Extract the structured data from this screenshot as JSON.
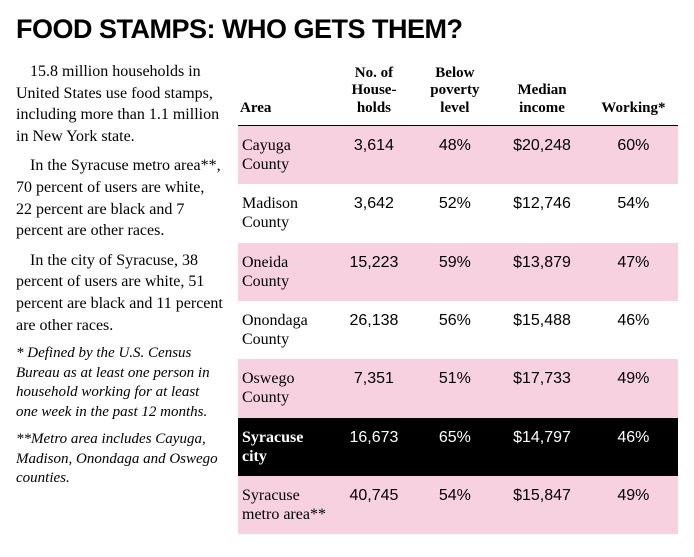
{
  "title": "FOOD STAMPS: WHO GETS THEM?",
  "sidebar": {
    "p1": "15.8 million households in United States use food stamps, including more than 1.1 million in New York state.",
    "p2": "In the Syracuse metro area**, 70 percent of users are white, 22 percent are black and 7 percent are other races.",
    "p3": "In the city of Syracuse, 38 percent of users are white, 51 percent are black and 11 percent are other races.",
    "fn1": "* Defined by the U.S. Census Bureau as at least one person in household working for at least one week in the past 12 months.",
    "fn2": "**Metro area includes Cayuga, Madison, Onondaga and Oswego counties."
  },
  "table": {
    "columns": {
      "area": "Area",
      "households": "No. of\nHouse-\nholds",
      "poverty": "Below\npoverty\nlevel",
      "income": "Median\nincome",
      "working": "Working*"
    },
    "rows": [
      {
        "area": "Cayuga County",
        "hh": "3,614",
        "pov": "48%",
        "inc": "$20,248",
        "work": "60%",
        "style": "pink"
      },
      {
        "area": "Madison County",
        "hh": "3,642",
        "pov": "52%",
        "inc": "$12,746",
        "work": "54%",
        "style": "white"
      },
      {
        "area": "Oneida County",
        "hh": "15,223",
        "pov": "59%",
        "inc": "$13,879",
        "work": "47%",
        "style": "pink"
      },
      {
        "area": "Onondaga County",
        "hh": "26,138",
        "pov": "56%",
        "inc": "$15,488",
        "work": "46%",
        "style": "white"
      },
      {
        "area": "Oswego County",
        "hh": "7,351",
        "pov": "51%",
        "inc": "$17,733",
        "work": "49%",
        "style": "pink"
      },
      {
        "area": "Syracuse city",
        "hh": "16,673",
        "pov": "65%",
        "inc": "$14,797",
        "work": "46%",
        "style": "black"
      },
      {
        "area": "Syracuse metro area**",
        "hh": "40,745",
        "pov": "54%",
        "inc": "$15,847",
        "work": "49%",
        "style": "pink"
      }
    ]
  },
  "colors": {
    "pink": "#f7d1df",
    "black": "#000000",
    "white": "#ffffff"
  }
}
